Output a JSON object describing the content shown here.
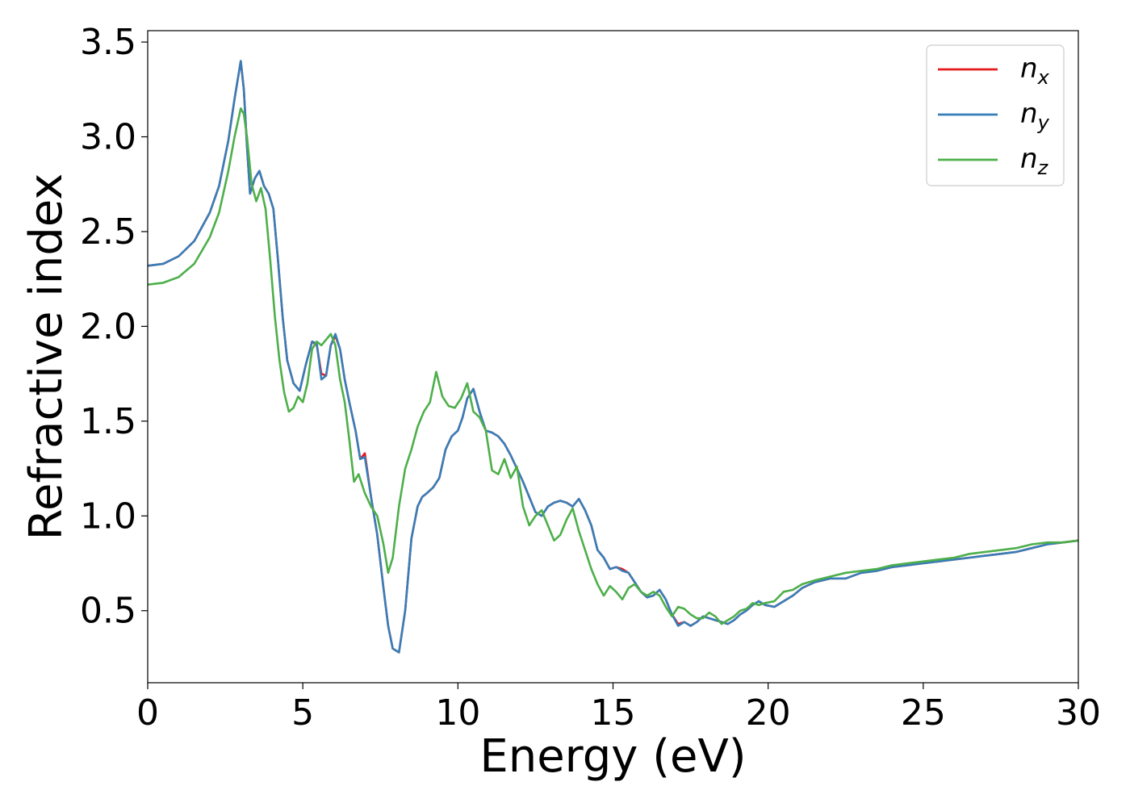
{
  "chart_data": {
    "type": "line",
    "title": "",
    "xlabel": "Energy (eV)",
    "ylabel": "Refractive index",
    "xlim": [
      0,
      30
    ],
    "ylim": [
      0.12,
      3.56
    ],
    "xticks": [
      0,
      5,
      10,
      15,
      20,
      25,
      30
    ],
    "xtick_labels": [
      "0",
      "5",
      "10",
      "15",
      "20",
      "25",
      "30"
    ],
    "yticks": [
      0.5,
      1.0,
      1.5,
      2.0,
      2.5,
      3.0,
      3.5
    ],
    "ytick_labels": [
      "0.5",
      "1.0",
      "1.5",
      "2.0",
      "2.5",
      "3.0",
      "3.5"
    ],
    "grid": false,
    "legend_position": "top-right",
    "series": [
      {
        "name": "n_x",
        "label_base": "n",
        "label_sub": "x",
        "color": "#e41a1c",
        "x": [
          0.0,
          0.5,
          1.0,
          1.5,
          2.0,
          2.3,
          2.6,
          2.8,
          3.0,
          3.1,
          3.2,
          3.3,
          3.45,
          3.6,
          3.75,
          3.9,
          4.05,
          4.2,
          4.35,
          4.5,
          4.7,
          4.9,
          5.1,
          5.3,
          5.45,
          5.6,
          5.75,
          5.9,
          6.05,
          6.2,
          6.35,
          6.5,
          6.7,
          6.85,
          7.0,
          7.2,
          7.4,
          7.6,
          7.75,
          7.9,
          8.1,
          8.3,
          8.5,
          8.7,
          8.85,
          9.0,
          9.2,
          9.4,
          9.6,
          9.8,
          10.0,
          10.15,
          10.3,
          10.5,
          10.7,
          10.9,
          11.1,
          11.3,
          11.5,
          11.7,
          11.9,
          12.1,
          12.3,
          12.5,
          12.7,
          12.9,
          13.1,
          13.3,
          13.5,
          13.7,
          13.9,
          14.1,
          14.3,
          14.5,
          14.7,
          14.9,
          15.1,
          15.3,
          15.5,
          15.7,
          15.9,
          16.1,
          16.3,
          16.5,
          16.7,
          16.9,
          17.1,
          17.3,
          17.5,
          17.7,
          17.9,
          18.1,
          18.3,
          18.5,
          18.7,
          18.9,
          19.1,
          19.3,
          19.5,
          19.7,
          19.9,
          20.2,
          20.5,
          20.8,
          21.1,
          21.5,
          22.0,
          22.5,
          23.0,
          23.5,
          24.0,
          24.5,
          25.0,
          25.5,
          26.0,
          26.5,
          27.0,
          27.5,
          28.0,
          28.5,
          29.0,
          29.5,
          30.0
        ],
        "y": [
          2.32,
          2.33,
          2.37,
          2.45,
          2.6,
          2.74,
          2.98,
          3.2,
          3.4,
          3.25,
          2.95,
          2.7,
          2.78,
          2.82,
          2.74,
          2.7,
          2.62,
          2.35,
          2.05,
          1.82,
          1.7,
          1.66,
          1.8,
          1.92,
          1.9,
          1.75,
          1.74,
          1.9,
          1.95,
          1.88,
          1.72,
          1.6,
          1.45,
          1.3,
          1.33,
          1.1,
          0.9,
          0.62,
          0.42,
          0.3,
          0.28,
          0.5,
          0.88,
          1.05,
          1.1,
          1.12,
          1.15,
          1.2,
          1.35,
          1.42,
          1.45,
          1.52,
          1.62,
          1.67,
          1.55,
          1.45,
          1.44,
          1.42,
          1.38,
          1.32,
          1.25,
          1.18,
          1.1,
          1.02,
          1.0,
          1.05,
          1.07,
          1.08,
          1.07,
          1.05,
          1.09,
          1.03,
          0.95,
          0.82,
          0.78,
          0.72,
          0.73,
          0.72,
          0.7,
          0.65,
          0.6,
          0.57,
          0.58,
          0.61,
          0.56,
          0.48,
          0.43,
          0.44,
          0.42,
          0.44,
          0.47,
          0.46,
          0.45,
          0.44,
          0.43,
          0.45,
          0.48,
          0.5,
          0.53,
          0.55,
          0.53,
          0.52,
          0.55,
          0.58,
          0.62,
          0.65,
          0.67,
          0.67,
          0.7,
          0.71,
          0.73,
          0.74,
          0.75,
          0.76,
          0.77,
          0.78,
          0.79,
          0.8,
          0.81,
          0.83,
          0.85,
          0.86,
          0.87
        ]
      },
      {
        "name": "n_y",
        "label_base": "n",
        "label_sub": "y",
        "color": "#377eb8",
        "x": [
          0.0,
          0.5,
          1.0,
          1.5,
          2.0,
          2.3,
          2.6,
          2.8,
          3.0,
          3.1,
          3.2,
          3.3,
          3.45,
          3.6,
          3.75,
          3.9,
          4.05,
          4.2,
          4.35,
          4.5,
          4.7,
          4.9,
          5.1,
          5.3,
          5.45,
          5.6,
          5.75,
          5.9,
          6.05,
          6.2,
          6.35,
          6.5,
          6.7,
          6.85,
          7.0,
          7.2,
          7.4,
          7.6,
          7.75,
          7.9,
          8.1,
          8.3,
          8.5,
          8.7,
          8.85,
          9.0,
          9.2,
          9.4,
          9.6,
          9.8,
          10.0,
          10.15,
          10.3,
          10.5,
          10.7,
          10.9,
          11.1,
          11.3,
          11.5,
          11.7,
          11.9,
          12.1,
          12.3,
          12.5,
          12.7,
          12.9,
          13.1,
          13.3,
          13.5,
          13.7,
          13.9,
          14.1,
          14.3,
          14.5,
          14.7,
          14.9,
          15.1,
          15.3,
          15.5,
          15.7,
          15.9,
          16.1,
          16.3,
          16.5,
          16.7,
          16.9,
          17.1,
          17.3,
          17.5,
          17.7,
          17.9,
          18.1,
          18.3,
          18.5,
          18.7,
          18.9,
          19.1,
          19.3,
          19.5,
          19.7,
          19.9,
          20.2,
          20.5,
          20.8,
          21.1,
          21.5,
          22.0,
          22.5,
          23.0,
          23.5,
          24.0,
          24.5,
          25.0,
          25.5,
          26.0,
          26.5,
          27.0,
          27.5,
          28.0,
          28.5,
          29.0,
          29.5,
          30.0
        ],
        "y": [
          2.32,
          2.33,
          2.37,
          2.45,
          2.6,
          2.74,
          2.98,
          3.2,
          3.4,
          3.25,
          2.95,
          2.7,
          2.78,
          2.82,
          2.74,
          2.7,
          2.62,
          2.35,
          2.05,
          1.82,
          1.7,
          1.66,
          1.8,
          1.92,
          1.91,
          1.72,
          1.74,
          1.9,
          1.96,
          1.88,
          1.72,
          1.6,
          1.45,
          1.3,
          1.31,
          1.1,
          0.9,
          0.62,
          0.42,
          0.3,
          0.28,
          0.5,
          0.88,
          1.05,
          1.1,
          1.12,
          1.15,
          1.2,
          1.35,
          1.42,
          1.45,
          1.52,
          1.62,
          1.67,
          1.55,
          1.45,
          1.44,
          1.42,
          1.38,
          1.32,
          1.25,
          1.18,
          1.1,
          1.02,
          1.0,
          1.05,
          1.07,
          1.08,
          1.07,
          1.05,
          1.09,
          1.03,
          0.95,
          0.82,
          0.78,
          0.72,
          0.73,
          0.71,
          0.7,
          0.65,
          0.6,
          0.57,
          0.58,
          0.61,
          0.56,
          0.48,
          0.42,
          0.44,
          0.42,
          0.44,
          0.47,
          0.46,
          0.45,
          0.44,
          0.43,
          0.45,
          0.48,
          0.5,
          0.53,
          0.55,
          0.53,
          0.52,
          0.55,
          0.58,
          0.62,
          0.65,
          0.67,
          0.67,
          0.7,
          0.71,
          0.73,
          0.74,
          0.75,
          0.76,
          0.77,
          0.78,
          0.79,
          0.8,
          0.81,
          0.83,
          0.85,
          0.86,
          0.87
        ]
      },
      {
        "name": "n_z",
        "label_base": "n",
        "label_sub": "z",
        "color": "#4daf4a",
        "x": [
          0.0,
          0.5,
          1.0,
          1.5,
          2.0,
          2.3,
          2.6,
          2.8,
          3.0,
          3.1,
          3.2,
          3.35,
          3.5,
          3.65,
          3.8,
          3.95,
          4.1,
          4.25,
          4.4,
          4.55,
          4.7,
          4.85,
          5.0,
          5.15,
          5.3,
          5.45,
          5.6,
          5.75,
          5.9,
          6.05,
          6.2,
          6.35,
          6.5,
          6.65,
          6.8,
          7.0,
          7.2,
          7.4,
          7.6,
          7.75,
          7.9,
          8.1,
          8.3,
          8.5,
          8.7,
          8.9,
          9.1,
          9.3,
          9.5,
          9.7,
          9.9,
          10.1,
          10.3,
          10.5,
          10.7,
          10.9,
          11.1,
          11.3,
          11.5,
          11.7,
          11.9,
          12.1,
          12.3,
          12.5,
          12.7,
          12.9,
          13.1,
          13.3,
          13.5,
          13.7,
          13.9,
          14.1,
          14.3,
          14.5,
          14.7,
          14.9,
          15.1,
          15.3,
          15.5,
          15.7,
          15.9,
          16.1,
          16.3,
          16.5,
          16.7,
          16.9,
          17.1,
          17.3,
          17.5,
          17.7,
          17.9,
          18.1,
          18.3,
          18.5,
          18.7,
          18.9,
          19.1,
          19.3,
          19.5,
          19.7,
          19.9,
          20.2,
          20.5,
          20.8,
          21.1,
          21.5,
          22.0,
          22.5,
          23.0,
          23.5,
          24.0,
          24.5,
          25.0,
          25.5,
          26.0,
          26.5,
          27.0,
          27.5,
          28.0,
          28.5,
          29.0,
          29.5,
          30.0
        ],
        "y": [
          2.22,
          2.23,
          2.26,
          2.33,
          2.47,
          2.6,
          2.82,
          3.0,
          3.15,
          3.12,
          3.0,
          2.75,
          2.66,
          2.73,
          2.62,
          2.35,
          2.05,
          1.82,
          1.65,
          1.55,
          1.57,
          1.63,
          1.6,
          1.7,
          1.88,
          1.92,
          1.9,
          1.93,
          1.96,
          1.9,
          1.72,
          1.6,
          1.4,
          1.18,
          1.22,
          1.12,
          1.05,
          1.0,
          0.85,
          0.7,
          0.78,
          1.05,
          1.25,
          1.35,
          1.47,
          1.55,
          1.6,
          1.76,
          1.63,
          1.58,
          1.57,
          1.62,
          1.7,
          1.55,
          1.52,
          1.45,
          1.24,
          1.22,
          1.3,
          1.2,
          1.26,
          1.05,
          0.95,
          1.0,
          1.03,
          0.95,
          0.87,
          0.9,
          0.98,
          1.04,
          0.92,
          0.82,
          0.72,
          0.64,
          0.58,
          0.63,
          0.6,
          0.56,
          0.62,
          0.64,
          0.6,
          0.58,
          0.6,
          0.58,
          0.52,
          0.47,
          0.52,
          0.51,
          0.48,
          0.46,
          0.46,
          0.49,
          0.47,
          0.43,
          0.45,
          0.47,
          0.5,
          0.51,
          0.54,
          0.53,
          0.54,
          0.55,
          0.6,
          0.61,
          0.64,
          0.66,
          0.68,
          0.7,
          0.71,
          0.72,
          0.74,
          0.75,
          0.76,
          0.77,
          0.78,
          0.8,
          0.81,
          0.82,
          0.83,
          0.85,
          0.86,
          0.86,
          0.87
        ]
      }
    ]
  }
}
